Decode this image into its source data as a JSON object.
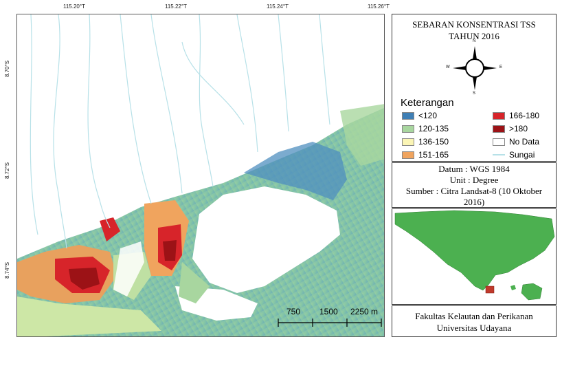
{
  "map": {
    "top_ticks": [
      "115.20°T",
      "115.22°T",
      "115.24°T",
      "115.26°T"
    ],
    "left_ticks": [
      "8.70°S",
      "8.72°S",
      "8.74°S"
    ],
    "scale_labels": [
      "750",
      "1500",
      "2250 m"
    ]
  },
  "panel": {
    "title_line1": "SEBARAN KONSENTRASI TSS",
    "title_line2": "TAHUN 2016",
    "compass": {
      "n": "N",
      "s": "S",
      "e": "E",
      "w": "W"
    },
    "legend_title": "Keterangan",
    "legend_items": [
      {
        "label": "<120",
        "color": "#3f7fb5"
      },
      {
        "label": "120-135",
        "color": "#a8d69f"
      },
      {
        "label": "136-150",
        "color": "#fbf5b5"
      },
      {
        "label": "151-165",
        "color": "#f0a45e"
      },
      {
        "label": "166-180",
        "color": "#d7242a"
      },
      {
        "label": ">180",
        "color": "#9c1216"
      },
      {
        "label": "No Data",
        "color": "#ffffff"
      },
      {
        "label": "Sungai",
        "color": "#b7e1e8"
      }
    ],
    "datum": "Datum : WGS 1984",
    "unit": "Unit : Degree",
    "source_line1": "Sumber : Citra Landsat-8 (10 Oktober",
    "source_line2": "2016)",
    "inset_land_color": "#4cb050",
    "credit_line1": "Fakultas Kelautan dan Perikanan",
    "credit_line2": "Universitas Udayana"
  }
}
